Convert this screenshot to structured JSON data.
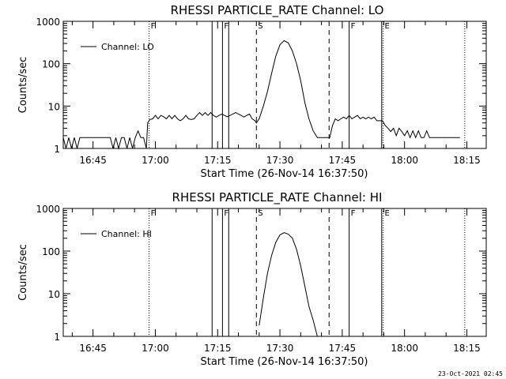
{
  "footer": {
    "timestamp": "23-Oct-2021 02:45"
  },
  "chart_data": [
    {
      "type": "line",
      "title": "RHESSI PARTICLE_RATE Channel: LO",
      "xlabel": "Start Time (26-Nov-14 16:37:50)",
      "ylabel": "Counts/sec",
      "yscale": "log",
      "ylim": [
        1,
        1000
      ],
      "xlim": [
        "16:37:50",
        "18:19:40"
      ],
      "x_ticks": [
        "16:45",
        "17:00",
        "17:15",
        "17:30",
        "17:45",
        "18:00",
        "18:15"
      ],
      "y_ticks": [
        "1",
        "10",
        "100",
        "1000"
      ],
      "legend": {
        "label": "Channel: LO",
        "position": "upper-left"
      },
      "markers": [
        {
          "label": "F",
          "time": "16:58:30",
          "style": "dotted"
        },
        {
          "label": "",
          "time": "17:13:40",
          "style": "solid"
        },
        {
          "label": "F",
          "time": "17:16:10",
          "style": "solid"
        },
        {
          "label": "",
          "time": "17:17:40",
          "style": "solid"
        },
        {
          "label": "S",
          "time": "17:24:20",
          "style": "dashed"
        },
        {
          "label": "",
          "time": "17:41:50",
          "style": "dashed"
        },
        {
          "label": "F",
          "time": "17:46:40",
          "style": "solid"
        },
        {
          "label": "",
          "time": "17:54:30",
          "style": "solid"
        },
        {
          "label": "E",
          "time": "17:54:50",
          "style": "dotted"
        },
        {
          "label": "",
          "time": "18:14:30",
          "style": "dotted"
        }
      ],
      "series": [
        {
          "x": [
            "16:37:50",
            "16:38:30",
            "16:39:10",
            "16:39:50",
            "16:40:30",
            "16:41:10",
            "16:41:50",
            "16:42:30",
            "16:43:10",
            "16:43:50",
            "16:44:30",
            "16:45:10",
            "16:45:50",
            "16:46:30",
            "16:47:10",
            "16:47:50",
            "16:48:30",
            "16:49:10",
            "16:49:50",
            "16:50:30",
            "16:51:10",
            "16:51:50",
            "16:52:30",
            "16:53:10",
            "16:53:50",
            "16:54:30",
            "16:55:10",
            "16:55:50",
            "16:56:30",
            "16:57:10",
            "16:57:50",
            "16:58:10",
            "16:58:40",
            "16:59:20",
            "17:00:00",
            "17:00:40",
            "17:01:20",
            "17:02:00",
            "17:02:40",
            "17:03:20",
            "17:04:00",
            "17:04:40",
            "17:05:20",
            "17:06:00",
            "17:06:40",
            "17:07:20",
            "17:08:00",
            "17:08:40",
            "17:09:20",
            "17:10:00",
            "17:10:40",
            "17:11:20",
            "17:12:00",
            "17:12:40",
            "17:13:20",
            "17:14:00",
            "17:14:40",
            "17:15:20",
            "17:16:00",
            "17:16:40",
            "17:17:20",
            "17:18:00",
            "17:18:40",
            "17:19:20",
            "17:20:00",
            "17:20:40",
            "17:21:20",
            "17:22:00",
            "17:22:40",
            "17:23:20",
            "17:24:00",
            "17:24:20",
            "17:25:00",
            "17:26:00",
            "17:27:00",
            "17:28:00",
            "17:29:00",
            "17:30:00",
            "17:31:00",
            "17:32:00",
            "17:33:00",
            "17:34:00",
            "17:35:00",
            "17:36:00",
            "17:37:00",
            "17:38:00",
            "17:39:00",
            "17:40:00",
            "17:41:00",
            "17:42:00",
            "17:42:40",
            "17:43:20",
            "17:44:00",
            "17:44:40",
            "17:45:20",
            "17:46:00",
            "17:46:40",
            "17:47:20",
            "17:48:00",
            "17:48:40",
            "17:49:20",
            "17:50:00",
            "17:50:40",
            "17:51:20",
            "17:52:00",
            "17:52:40",
            "17:53:20",
            "17:54:00",
            "17:54:40",
            "17:55:20",
            "17:56:00",
            "17:56:40",
            "17:57:20",
            "17:58:00",
            "17:58:40",
            "17:59:20",
            "18:00:00",
            "18:00:40",
            "18:01:20",
            "18:02:00",
            "18:02:40",
            "18:03:20",
            "18:04:00",
            "18:04:40",
            "18:05:20",
            "18:06:00",
            "18:06:40",
            "18:07:20",
            "18:08:00",
            "18:08:40",
            "18:09:20",
            "18:10:00",
            "18:10:40",
            "18:11:20",
            "18:12:00",
            "18:12:40",
            "18:13:20"
          ],
          "y": [
            1.8,
            1,
            1.8,
            1,
            1.8,
            1,
            1.8,
            1.8,
            1.8,
            1.8,
            1.8,
            1.8,
            1.8,
            1.8,
            1.8,
            1.8,
            1.8,
            1.8,
            1,
            1.8,
            1,
            1.8,
            1.8,
            1,
            1.8,
            1,
            1.8,
            2.6,
            1.8,
            1.8,
            1,
            4,
            4.8,
            5,
            6,
            5,
            6,
            5.6,
            5,
            6,
            5,
            6,
            5,
            4.5,
            5,
            6,
            5,
            4.8,
            5,
            6,
            7,
            6,
            7,
            6,
            7,
            6,
            5.5,
            6,
            6.5,
            6,
            5.6,
            6,
            6.5,
            7,
            6.5,
            6,
            5.5,
            6,
            6.5,
            5,
            4.5,
            4,
            5,
            10,
            22,
            60,
            150,
            280,
            350,
            310,
            200,
            100,
            40,
            12,
            5,
            2.6,
            1.8,
            1.8,
            1.8,
            1.8,
            3.5,
            5,
            4.5,
            5,
            5.5,
            5,
            6,
            5,
            5.5,
            6,
            5,
            5.5,
            5,
            5.5,
            5,
            5.5,
            4.5,
            4.5,
            4.5,
            3.5,
            3,
            2.5,
            3,
            2,
            3,
            2.5,
            2,
            2.6,
            1.8,
            2.6,
            1.8,
            2.6,
            1.8,
            1.8,
            2.6,
            1.8,
            1.8,
            1.8,
            1.8,
            1.8,
            1.8,
            1.8,
            1.8,
            1.8,
            1.8,
            1.8,
            1.8
          ]
        }
      ]
    },
    {
      "type": "line",
      "title": "RHESSI PARTICLE_RATE Channel: HI",
      "xlabel": "Start Time (26-Nov-14 16:37:50)",
      "ylabel": "Counts/sec",
      "yscale": "log",
      "ylim": [
        1,
        1000
      ],
      "xlim": [
        "16:37:50",
        "18:19:40"
      ],
      "x_ticks": [
        "16:45",
        "17:00",
        "17:15",
        "17:30",
        "17:45",
        "18:00",
        "18:15"
      ],
      "y_ticks": [
        "1",
        "10",
        "100",
        "1000"
      ],
      "legend": {
        "label": "Channel: HI",
        "position": "upper-left"
      },
      "markers": [
        {
          "label": "F",
          "time": "16:58:30",
          "style": "dotted"
        },
        {
          "label": "",
          "time": "17:13:40",
          "style": "solid"
        },
        {
          "label": "F",
          "time": "17:16:10",
          "style": "solid"
        },
        {
          "label": "",
          "time": "17:17:40",
          "style": "solid"
        },
        {
          "label": "S",
          "time": "17:24:20",
          "style": "dashed"
        },
        {
          "label": "",
          "time": "17:41:50",
          "style": "dashed"
        },
        {
          "label": "F",
          "time": "17:46:40",
          "style": "solid"
        },
        {
          "label": "",
          "time": "17:54:30",
          "style": "solid"
        },
        {
          "label": "E",
          "time": "17:54:50",
          "style": "dotted"
        },
        {
          "label": "",
          "time": "18:14:30",
          "style": "dotted"
        }
      ],
      "series": [
        {
          "x": [
            "17:25:00",
            "17:26:00",
            "17:27:00",
            "17:28:00",
            "17:29:00",
            "17:30:00",
            "17:31:00",
            "17:32:00",
            "17:33:00",
            "17:34:00",
            "17:35:00",
            "17:36:00",
            "17:37:00",
            "17:38:00",
            "17:39:00"
          ],
          "y": [
            1.8,
            8,
            30,
            80,
            160,
            240,
            270,
            250,
            200,
            110,
            45,
            15,
            5,
            2.4,
            1
          ]
        }
      ]
    }
  ]
}
